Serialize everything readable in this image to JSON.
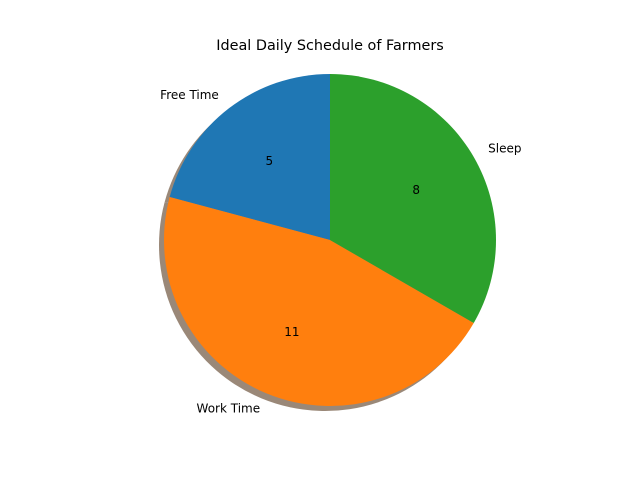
{
  "chart_data": {
    "type": "pie",
    "title": "Ideal Daily Schedule of Farmers",
    "slices": [
      {
        "label": "Free Time",
        "value": 5,
        "value_label": "5",
        "color": "#1f77b4"
      },
      {
        "label": "Work Time",
        "value": 11,
        "value_label": "11",
        "color": "#ff7f0e"
      },
      {
        "label": "Sleep",
        "value": 8,
        "value_label": "8",
        "color": "#2ca02c"
      }
    ],
    "start_angle_deg": 90,
    "direction": "counterclockwise",
    "shadow": true,
    "shadow_color": "#9a8878"
  }
}
